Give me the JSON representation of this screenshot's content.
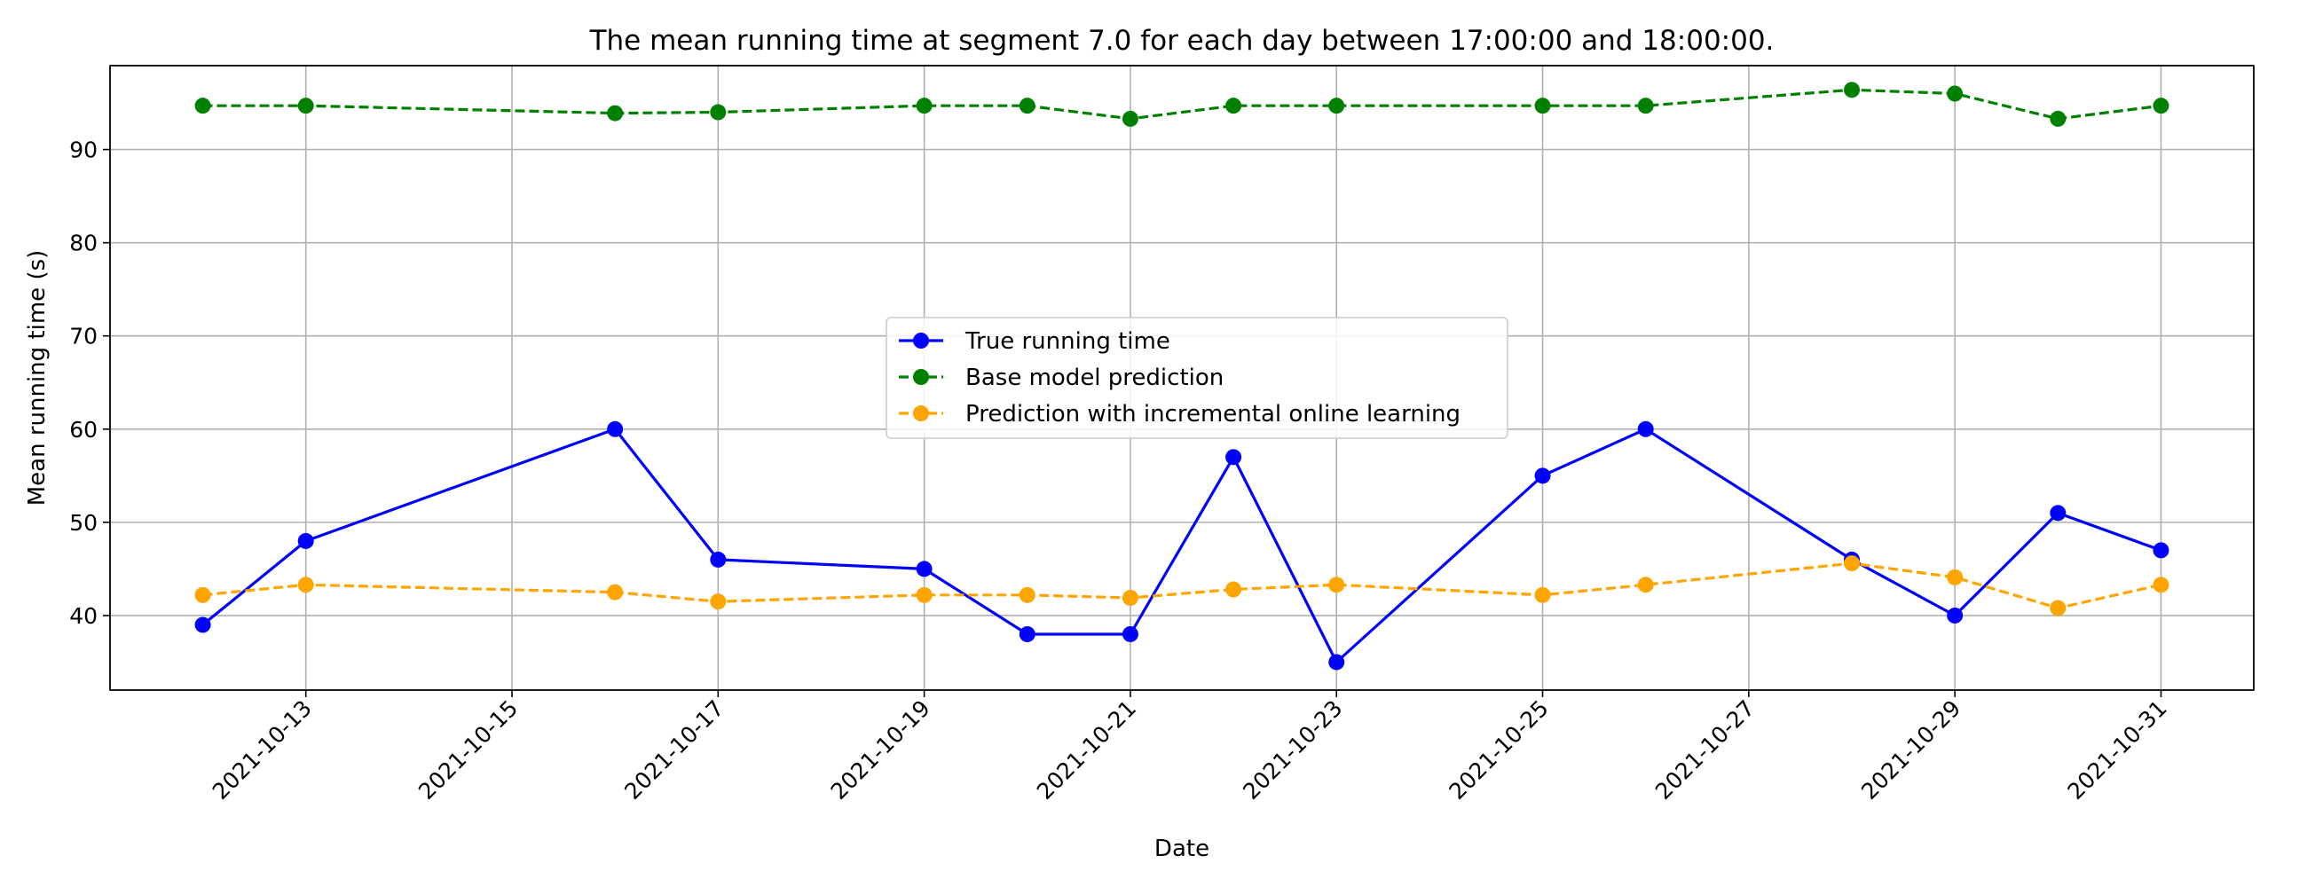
{
  "chart_data": {
    "type": "line",
    "title": "The mean running time at segment 7.0 for each day between 17:00:00 and 18:00:00.",
    "xlabel": "Date",
    "ylabel": "Mean running time (s)",
    "x_ticks": [
      "2021-10-13",
      "2021-10-15",
      "2021-10-17",
      "2021-10-19",
      "2021-10-21",
      "2021-10-23",
      "2021-10-25",
      "2021-10-27",
      "2021-10-29",
      "2021-10-31"
    ],
    "y_ticks": [
      40,
      50,
      60,
      70,
      80,
      90
    ],
    "xlim": [
      "2021-10-11",
      "2021-11-01"
    ],
    "ylim": [
      32,
      99
    ],
    "grid": true,
    "legend_position": "center",
    "series": [
      {
        "name": "True running time",
        "color": "#0000ff",
        "linestyle": "solid",
        "marker": "circle",
        "points": [
          {
            "x": "2021-10-12",
            "y": 39
          },
          {
            "x": "2021-10-13",
            "y": 48
          },
          {
            "x": "2021-10-16",
            "y": 60
          },
          {
            "x": "2021-10-17",
            "y": 46
          },
          {
            "x": "2021-10-19",
            "y": 45
          },
          {
            "x": "2021-10-20",
            "y": 38
          },
          {
            "x": "2021-10-21",
            "y": 38
          },
          {
            "x": "2021-10-22",
            "y": 57
          },
          {
            "x": "2021-10-23",
            "y": 35
          },
          {
            "x": "2021-10-25",
            "y": 55
          },
          {
            "x": "2021-10-26",
            "y": 60
          },
          {
            "x": "2021-10-28",
            "y": 46
          },
          {
            "x": "2021-10-29",
            "y": 40
          },
          {
            "x": "2021-10-30",
            "y": 51
          },
          {
            "x": "2021-10-31",
            "y": 47
          }
        ]
      },
      {
        "name": "Base model prediction",
        "color": "#008000",
        "linestyle": "dashed",
        "marker": "circle",
        "points": [
          {
            "x": "2021-10-12",
            "y": 94.7
          },
          {
            "x": "2021-10-13",
            "y": 94.7
          },
          {
            "x": "2021-10-16",
            "y": 93.9
          },
          {
            "x": "2021-10-17",
            "y": 94.0
          },
          {
            "x": "2021-10-19",
            "y": 94.7
          },
          {
            "x": "2021-10-20",
            "y": 94.7
          },
          {
            "x": "2021-10-21",
            "y": 93.3
          },
          {
            "x": "2021-10-22",
            "y": 94.7
          },
          {
            "x": "2021-10-23",
            "y": 94.7
          },
          {
            "x": "2021-10-25",
            "y": 94.7
          },
          {
            "x": "2021-10-26",
            "y": 94.7
          },
          {
            "x": "2021-10-28",
            "y": 96.4
          },
          {
            "x": "2021-10-29",
            "y": 96.0
          },
          {
            "x": "2021-10-30",
            "y": 93.3
          },
          {
            "x": "2021-10-31",
            "y": 94.7
          }
        ]
      },
      {
        "name": "Prediction with incremental online learning",
        "color": "#ffa500",
        "linestyle": "dashed",
        "marker": "circle",
        "points": [
          {
            "x": "2021-10-12",
            "y": 42.2
          },
          {
            "x": "2021-10-13",
            "y": 43.3
          },
          {
            "x": "2021-10-16",
            "y": 42.5
          },
          {
            "x": "2021-10-17",
            "y": 41.5
          },
          {
            "x": "2021-10-19",
            "y": 42.2
          },
          {
            "x": "2021-10-20",
            "y": 42.2
          },
          {
            "x": "2021-10-21",
            "y": 41.9
          },
          {
            "x": "2021-10-22",
            "y": 42.8
          },
          {
            "x": "2021-10-23",
            "y": 43.3
          },
          {
            "x": "2021-10-25",
            "y": 42.2
          },
          {
            "x": "2021-10-26",
            "y": 43.3
          },
          {
            "x": "2021-10-28",
            "y": 45.6
          },
          {
            "x": "2021-10-29",
            "y": 44.1
          },
          {
            "x": "2021-10-30",
            "y": 40.8
          },
          {
            "x": "2021-10-31",
            "y": 43.3
          }
        ]
      }
    ]
  }
}
